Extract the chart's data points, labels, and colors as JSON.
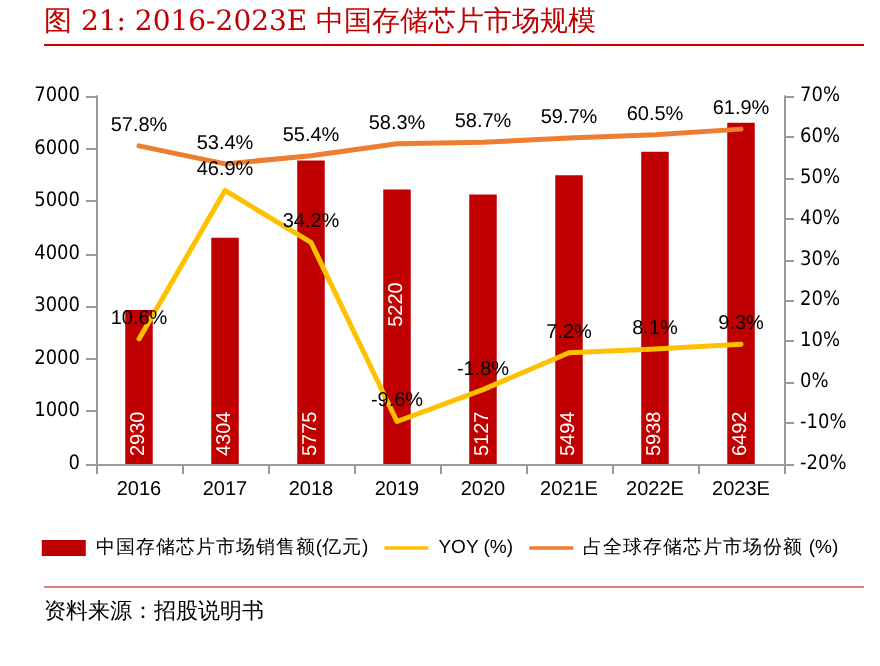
{
  "chart_data": {
    "type": "bar",
    "title": "图 21:  2016-2023E 中国存储芯片市场规模",
    "categories": [
      "2016",
      "2017",
      "2018",
      "2019",
      "2020",
      "2021E",
      "2022E",
      "2023E"
    ],
    "series": [
      {
        "name": "中国存储芯片市场销售额(亿元)",
        "color": "#c00000",
        "values": [
          2930,
          4304,
          5775,
          5220,
          5127,
          5494,
          5938,
          6492
        ],
        "data_labels": true
      },
      {
        "name": "YOY (%)",
        "type": "line",
        "axis": "y2",
        "color": "#ffc000",
        "values": [
          10.6,
          46.9,
          34.2,
          -9.6,
          -1.8,
          7.2,
          8.1,
          9.3
        ],
        "value_labels": [
          "10.6%",
          "46.9%",
          "34.2%",
          "-9.6%",
          "-1.8%",
          "7.2%",
          "8.1%",
          "9.3%"
        ]
      },
      {
        "name": "占全球存储芯片市场份额 (%)",
        "type": "line",
        "axis": "y2",
        "color": "#ed7d31",
        "values": [
          57.8,
          53.4,
          55.4,
          58.3,
          58.7,
          59.7,
          60.5,
          61.9
        ],
        "value_labels": [
          "57.8%",
          "53.4%",
          "55.4%",
          "58.3%",
          "58.7%",
          "59.7%",
          "60.5%",
          "61.9%"
        ]
      }
    ],
    "ylim": [
      0,
      7000
    ],
    "yticks": [
      0,
      1000,
      2000,
      3000,
      4000,
      5000,
      6000,
      7000
    ],
    "y2lim": [
      -20,
      70
    ],
    "y2ticks": [
      {
        "value": -20,
        "label": "-20%"
      },
      {
        "value": -10,
        "label": "-10%"
      },
      {
        "value": 0,
        "label": "0%"
      },
      {
        "value": 10,
        "label": "10%"
      },
      {
        "value": 20,
        "label": "20%"
      },
      {
        "value": 30,
        "label": "30%"
      },
      {
        "value": 40,
        "label": "40%"
      },
      {
        "value": 50,
        "label": "50%"
      },
      {
        "value": 60,
        "label": "60%"
      },
      {
        "value": 70,
        "label": "70%"
      }
    ],
    "grid": false,
    "legend": "bottom",
    "marker": "none",
    "line_style": "solid",
    "annotations": [
      "资料来源：招股说明书"
    ]
  }
}
